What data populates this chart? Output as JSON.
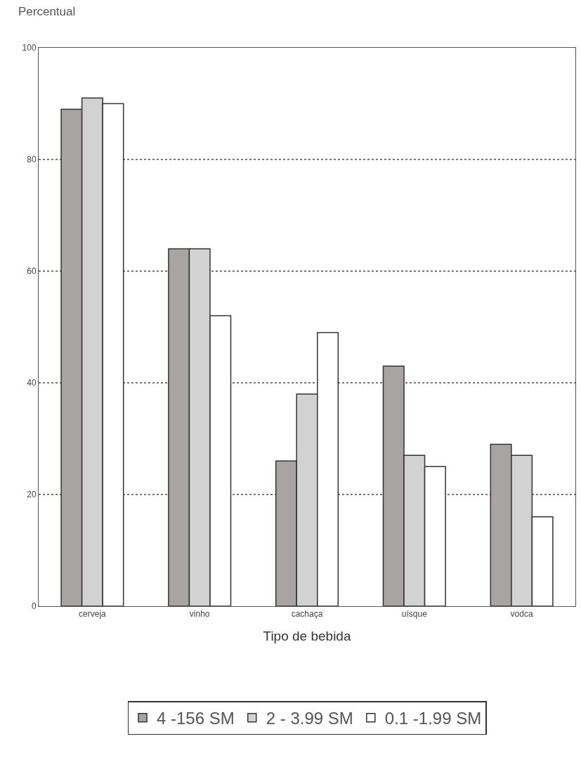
{
  "chart_data": {
    "type": "bar",
    "ylabel": "Percentual",
    "xlabel": "Tipo de bebida",
    "categories": [
      "cerveja",
      "vinho",
      "cachaça",
      "uísque",
      "vodca"
    ],
    "series": [
      {
        "name": "4 -156 SM",
        "color": "#a9a4a4",
        "values": [
          89,
          64,
          26,
          43,
          29
        ]
      },
      {
        "name": "2 - 3.99 SM",
        "color": "#d2d2d2",
        "values": [
          91,
          64,
          38,
          27,
          27
        ]
      },
      {
        "name": "0.1 -1.99 SM",
        "color": "#ffffff",
        "values": [
          90,
          52,
          49,
          25,
          16
        ]
      }
    ],
    "ylim": [
      0,
      100
    ],
    "yticks": [
      0,
      20,
      40,
      60,
      80,
      100
    ],
    "grid": "y",
    "legend": "bottom"
  }
}
